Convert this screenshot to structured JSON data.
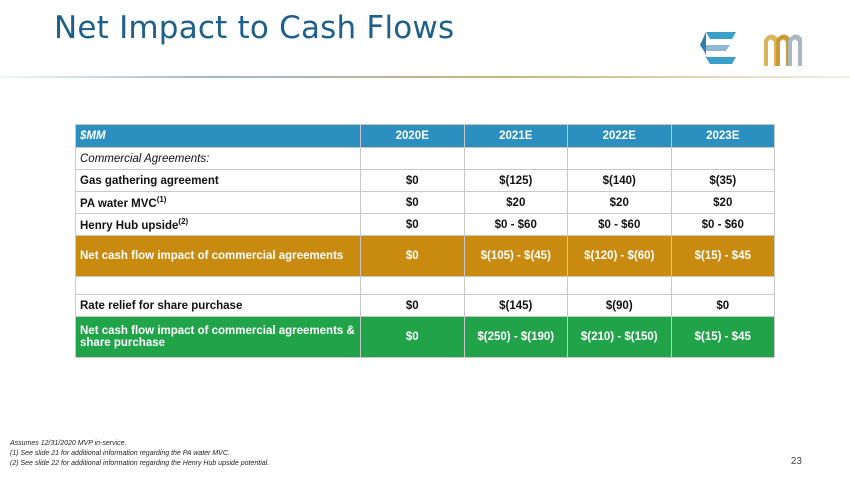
{
  "title": "Net Impact to Cash Flows",
  "table": {
    "unit_label": "$MM",
    "columns": [
      "2020E",
      "2021E",
      "2022E",
      "2023E"
    ],
    "section_label": "Commercial Agreements:",
    "rows": [
      {
        "label": "Gas gathering agreement",
        "note": "",
        "values": [
          "$0",
          "$(125)",
          "$(140)",
          "$(35)"
        ]
      },
      {
        "label": "PA water MVC",
        "note": "(1)",
        "values": [
          "$0",
          "$20",
          "$20",
          "$20"
        ]
      },
      {
        "label": "Henry Hub upside",
        "note": "(2)",
        "values": [
          "$0",
          "$0 - $60",
          "$0 - $60",
          "$0 - $60"
        ]
      }
    ],
    "subtotal": {
      "label": "Net cash flow impact of commercial agreements",
      "values": [
        "$0",
        "$(105) - $(45)",
        "$(120) - $(60)",
        "$(15) - $45"
      ]
    },
    "rate_relief": {
      "label": "Rate relief for share purchase",
      "values": [
        "$0",
        "$(145)",
        "$(90)",
        "$0"
      ]
    },
    "total": {
      "label": "Net cash flow impact of commercial agreements & share purchase",
      "values": [
        "$0",
        "$(250) - $(190)",
        "$(210) - $(150)",
        "$(15) - $45"
      ]
    }
  },
  "footnotes": [
    "Assumes 12/31/2020 MVP in-service.",
    "(1)  See slide 21 for additional information regarding the PA water MVC.",
    "(2)  See slide 22 for additional information regarding the Henry Hub upside potential."
  ],
  "page_number": "23",
  "colors": {
    "title": "#1f5f8b",
    "header": "#2b8fbf",
    "subtotal": "#c98a10",
    "total": "#21a34a"
  },
  "logos": [
    "equitrans-e-logo",
    "mountain-valley-m-logo"
  ]
}
